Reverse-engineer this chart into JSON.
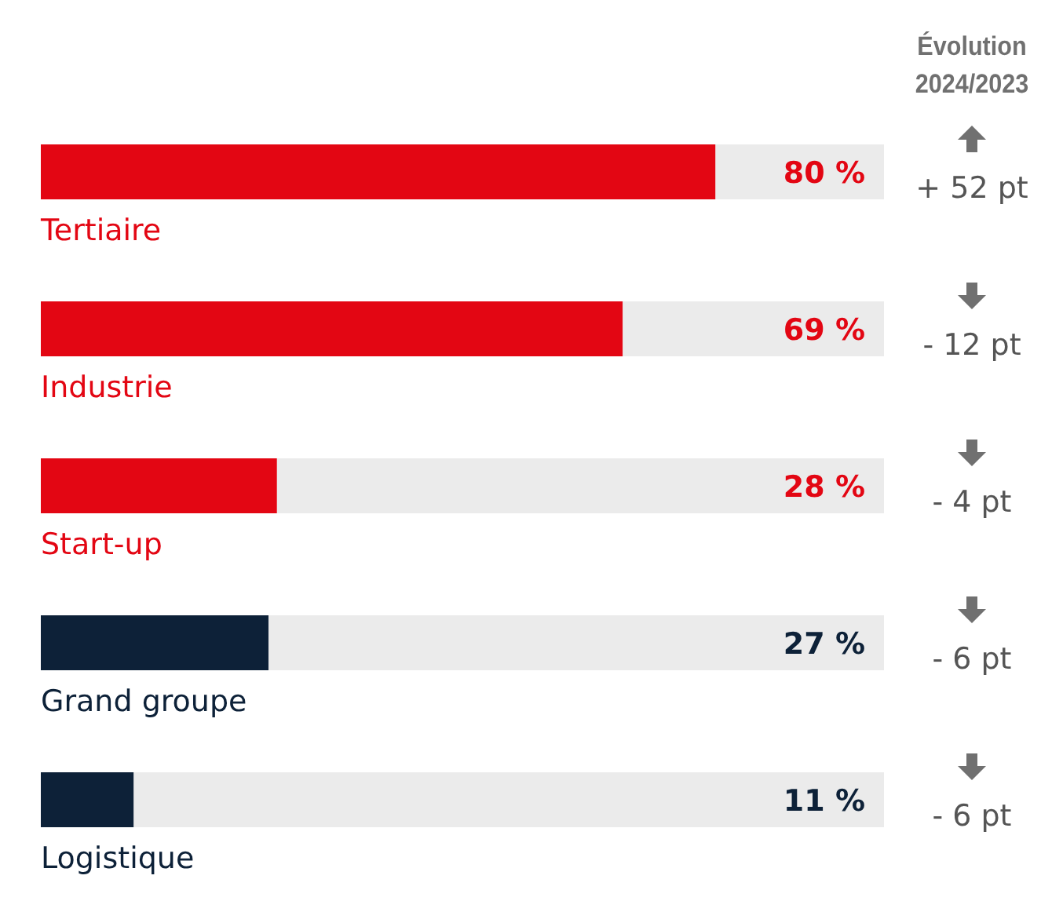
{
  "chart_data": {
    "type": "bar",
    "orientation": "horizontal",
    "categories": [
      "Tertiaire",
      "Industrie",
      "Start-up",
      "Grand groupe",
      "Logistique"
    ],
    "values": [
      80,
      69,
      28,
      27,
      11
    ],
    "colors": [
      "#e30613",
      "#e30613",
      "#e30613",
      "#0d2138",
      "#0d2138"
    ],
    "value_labels": [
      "80 %",
      "69 %",
      "28 %",
      "27 %",
      "11 %"
    ],
    "xlim": [
      0,
      100
    ],
    "annotations": [
      "Évolution 2024/2023",
      "+ 52 pt",
      "- 12 pt",
      "- 4 pt",
      "- 6 pt",
      "- 6 pt"
    ]
  }
}
